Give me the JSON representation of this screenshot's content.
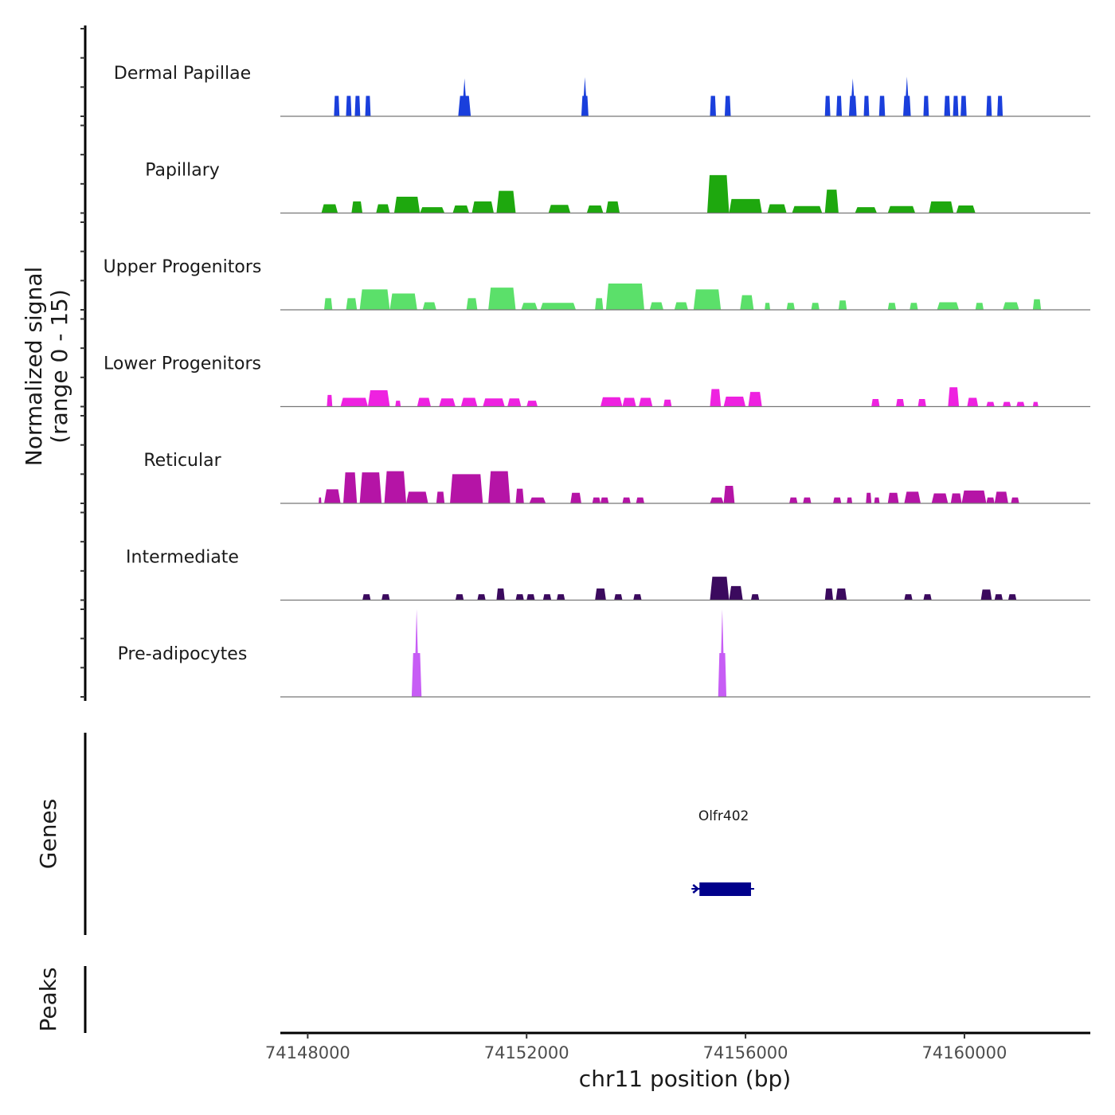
{
  "chart_data": {
    "type": "area",
    "title": "",
    "ylabel_lines": [
      "Normalized signal",
      "(range 0 - 15)"
    ],
    "xlabel": "chr11 position (bp)",
    "xlim": [
      74147500,
      74162300
    ],
    "ylim": [
      0,
      15
    ],
    "x_ticks": [
      74148000,
      74152000,
      74156000,
      74160000
    ],
    "x_tick_labels": [
      "74148000",
      "74152000",
      "74156000",
      "74160000"
    ],
    "track_panel_labels": {
      "genes": "Genes",
      "peaks": "Peaks"
    },
    "tracks": [
      {
        "name": "Dermal Papillae",
        "color": "#1a3fdc",
        "peaks": [
          [
            74148480,
            74148580,
            3.5
          ],
          [
            74148700,
            74148800,
            3.5
          ],
          [
            74148860,
            74148960,
            3.5
          ],
          [
            74149050,
            74149150,
            3.5
          ],
          [
            74150750,
            74150980,
            3.5,
            6.5
          ],
          [
            74153000,
            74153130,
            3.5,
            6.7
          ],
          [
            74155350,
            74155460,
            3.5
          ],
          [
            74155620,
            74155730,
            3.5
          ],
          [
            74157450,
            74157550,
            3.5
          ],
          [
            74157660,
            74157760,
            3.5
          ],
          [
            74157890,
            74158030,
            3.5,
            6.5
          ],
          [
            74158160,
            74158260,
            3.5
          ],
          [
            74158440,
            74158550,
            3.5
          ],
          [
            74158880,
            74159020,
            3.5,
            6.8
          ],
          [
            74159250,
            74159350,
            3.5
          ],
          [
            74159630,
            74159740,
            3.5
          ],
          [
            74159790,
            74159890,
            3.5
          ],
          [
            74159930,
            74160040,
            3.5
          ],
          [
            74160400,
            74160500,
            3.5
          ],
          [
            74160600,
            74160700,
            3.5
          ]
        ]
      },
      {
        "name": "Papillary",
        "color": "#1ea80e",
        "peaks": [
          [
            74148250,
            74148550,
            1.5
          ],
          [
            74148800,
            74149000,
            2
          ],
          [
            74149250,
            74149500,
            1.5
          ],
          [
            74149580,
            74150050,
            2.8
          ],
          [
            74150050,
            74150500,
            1
          ],
          [
            74150650,
            74150950,
            1.3
          ],
          [
            74151000,
            74151400,
            2
          ],
          [
            74151450,
            74151800,
            3.8
          ],
          [
            74152400,
            74152800,
            1.4
          ],
          [
            74153100,
            74153400,
            1.3
          ],
          [
            74153450,
            74153700,
            2
          ],
          [
            74155300,
            74155700,
            6.5
          ],
          [
            74155700,
            74156300,
            2.4
          ],
          [
            74156400,
            74156750,
            1.5
          ],
          [
            74156850,
            74157400,
            1.2
          ],
          [
            74157450,
            74157700,
            4
          ],
          [
            74158000,
            74158400,
            1
          ],
          [
            74158600,
            74159100,
            1.2
          ],
          [
            74159350,
            74159800,
            2
          ],
          [
            74159850,
            74160200,
            1.3
          ]
        ]
      },
      {
        "name": "Upper Progenitors",
        "color": "#5be06a",
        "peaks": [
          [
            74148300,
            74148450,
            2
          ],
          [
            74148700,
            74148900,
            2
          ],
          [
            74148950,
            74149500,
            3.5
          ],
          [
            74149500,
            74150000,
            2.8
          ],
          [
            74150100,
            74150350,
            1.3
          ],
          [
            74150900,
            74151100,
            2
          ],
          [
            74151300,
            74151800,
            3.8
          ],
          [
            74151900,
            74152200,
            1.2
          ],
          [
            74152250,
            74152900,
            1.2
          ],
          [
            74153250,
            74153400,
            2
          ],
          [
            74153450,
            74154150,
            4.5
          ],
          [
            74154250,
            74154500,
            1.3
          ],
          [
            74154700,
            74154950,
            1.3
          ],
          [
            74155050,
            74155550,
            3.5
          ],
          [
            74155900,
            74156150,
            2.5
          ],
          [
            74156350,
            74156450,
            1.2
          ],
          [
            74156750,
            74156900,
            1.2
          ],
          [
            74157200,
            74157350,
            1.2
          ],
          [
            74157700,
            74157850,
            1.6
          ],
          [
            74158600,
            74158750,
            1.2
          ],
          [
            74159000,
            74159150,
            1.2
          ],
          [
            74159500,
            74159900,
            1.3
          ],
          [
            74160200,
            74160350,
            1.2
          ],
          [
            74160700,
            74161000,
            1.3
          ],
          [
            74161250,
            74161400,
            1.8
          ]
        ]
      },
      {
        "name": "Lower Progenitors",
        "color": "#ee22e0",
        "peaks": [
          [
            74148350,
            74148450,
            2
          ],
          [
            74148600,
            74149100,
            1.5
          ],
          [
            74149100,
            74149500,
            2.8
          ],
          [
            74149600,
            74149700,
            1
          ],
          [
            74150000,
            74150250,
            1.5
          ],
          [
            74150400,
            74150700,
            1.4
          ],
          [
            74150800,
            74151100,
            1.5
          ],
          [
            74151200,
            74151600,
            1.4
          ],
          [
            74151650,
            74151900,
            1.4
          ],
          [
            74152000,
            74152200,
            1
          ],
          [
            74153350,
            74153750,
            1.6
          ],
          [
            74153750,
            74154000,
            1.5
          ],
          [
            74154050,
            74154300,
            1.5
          ],
          [
            74154500,
            74154650,
            1.2
          ],
          [
            74155350,
            74155550,
            3
          ],
          [
            74155600,
            74156000,
            1.7
          ],
          [
            74156050,
            74156300,
            2.5
          ],
          [
            74158300,
            74158450,
            1.3
          ],
          [
            74158750,
            74158900,
            1.3
          ],
          [
            74159150,
            74159300,
            1.3
          ],
          [
            74159700,
            74159900,
            3.3
          ],
          [
            74160050,
            74160250,
            1.5
          ],
          [
            74160400,
            74160550,
            0.8
          ],
          [
            74160700,
            74160850,
            0.8
          ],
          [
            74160950,
            74161100,
            0.8
          ],
          [
            74161250,
            74161350,
            0.8
          ]
        ]
      },
      {
        "name": "Reticular",
        "color": "#b514a6",
        "peaks": [
          [
            74148200,
            74148250,
            1
          ],
          [
            74148300,
            74148600,
            2.4
          ],
          [
            74148650,
            74148900,
            5.3
          ],
          [
            74148950,
            74149350,
            5.3
          ],
          [
            74149400,
            74149800,
            5.5
          ],
          [
            74149800,
            74150200,
            2
          ],
          [
            74150350,
            74150500,
            2
          ],
          [
            74150600,
            74151200,
            5
          ],
          [
            74151300,
            74151700,
            5.5
          ],
          [
            74151800,
            74151950,
            2.5
          ],
          [
            74152050,
            74152350,
            1
          ],
          [
            74152800,
            74153000,
            1.8
          ],
          [
            74153200,
            74153350,
            1
          ],
          [
            74153350,
            74153500,
            1
          ],
          [
            74153750,
            74153900,
            1
          ],
          [
            74154000,
            74154150,
            1
          ],
          [
            74155350,
            74155600,
            1
          ],
          [
            74155600,
            74155800,
            3
          ],
          [
            74156800,
            74156950,
            1
          ],
          [
            74157050,
            74157200,
            1
          ],
          [
            74157600,
            74157750,
            1
          ],
          [
            74157850,
            74157950,
            1
          ],
          [
            74158200,
            74158300,
            1.8
          ],
          [
            74158350,
            74158450,
            1
          ],
          [
            74158600,
            74158800,
            1.8
          ],
          [
            74158900,
            74159200,
            2
          ],
          [
            74159400,
            74159700,
            1.7
          ],
          [
            74159750,
            74159950,
            1.7
          ],
          [
            74159950,
            74160400,
            2.2
          ],
          [
            74160400,
            74160550,
            1
          ],
          [
            74160550,
            74160800,
            2
          ],
          [
            74160850,
            74161000,
            1
          ]
        ]
      },
      {
        "name": "Intermediate",
        "color": "#3b0a5e",
        "peaks": [
          [
            74149000,
            74149150,
            1
          ],
          [
            74149350,
            74149500,
            1
          ],
          [
            74150700,
            74150850,
            1
          ],
          [
            74151100,
            74151250,
            1
          ],
          [
            74151450,
            74151600,
            2
          ],
          [
            74151800,
            74151950,
            1
          ],
          [
            74152000,
            74152150,
            1
          ],
          [
            74152300,
            74152450,
            1
          ],
          [
            74152550,
            74152700,
            1
          ],
          [
            74153250,
            74153450,
            2
          ],
          [
            74153600,
            74153750,
            1
          ],
          [
            74153950,
            74154100,
            1
          ],
          [
            74155350,
            74155700,
            4
          ],
          [
            74155700,
            74155950,
            2.4
          ],
          [
            74156100,
            74156250,
            1
          ],
          [
            74157450,
            74157600,
            2
          ],
          [
            74157650,
            74157850,
            2
          ],
          [
            74158900,
            74159050,
            1
          ],
          [
            74159250,
            74159400,
            1
          ],
          [
            74160300,
            74160500,
            1.8
          ],
          [
            74160550,
            74160700,
            1
          ],
          [
            74160800,
            74160950,
            1
          ]
        ]
      },
      {
        "name": "Pre-adipocytes",
        "color": "#c75df5",
        "peaks": [
          [
            74149900,
            74150080,
            7.5,
            15
          ],
          [
            74155500,
            74155650,
            7.5,
            15
          ]
        ]
      }
    ],
    "genes": [
      {
        "name": "Olfr402",
        "start": 74155100,
        "end": 74156100,
        "strand": "-",
        "color": "#00008b"
      }
    ],
    "peaks_track": []
  }
}
